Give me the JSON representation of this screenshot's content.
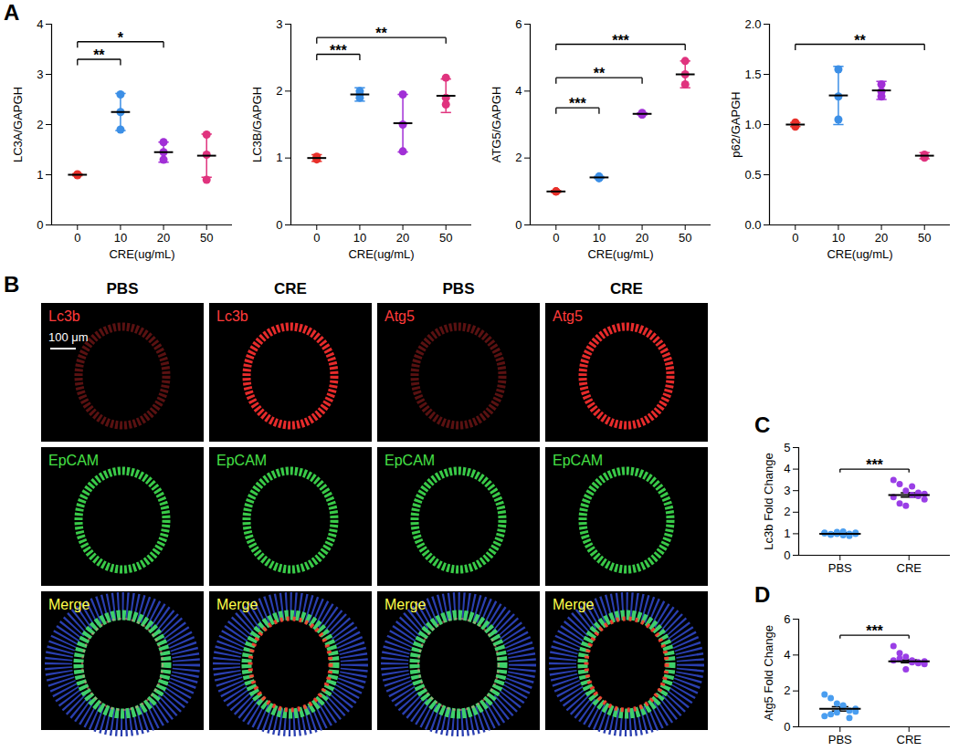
{
  "chart_data": [
    {
      "panel_label": "A",
      "type": "scatter",
      "categories": [
        "0",
        "10",
        "20",
        "50"
      ],
      "x_label": "CRE(ug/mL)",
      "y_label": "LC3A/GAPGH",
      "colors": [
        "#e8302a",
        "#3c8fe6",
        "#a12fd6",
        "#e0337e"
      ],
      "values": [
        [
          1.0,
          0.99,
          1.01
        ],
        [
          2.6,
          1.9,
          2.25
        ],
        [
          1.65,
          1.3,
          1.45
        ],
        [
          1.8,
          0.9,
          1.4
        ]
      ],
      "means": [
        1.0,
        2.25,
        1.45,
        1.38
      ],
      "errors": [
        0.02,
        0.37,
        0.2,
        0.43
      ],
      "ylim": [
        0,
        4
      ],
      "yticks": [
        0,
        1,
        2,
        3,
        4
      ],
      "significance": [
        {
          "between": [
            "0",
            "10"
          ],
          "y": 3.3,
          "label": "**"
        },
        {
          "between": [
            "0",
            "20"
          ],
          "y": 3.65,
          "label": "*"
        }
      ]
    },
    {
      "panel_label": null,
      "type": "scatter",
      "categories": [
        "0",
        "10",
        "20",
        "50"
      ],
      "x_label": "CRE(ug/mL)",
      "y_label": "LC3B/GAPGH",
      "colors": [
        "#e8302a",
        "#3c8fe6",
        "#a12fd6",
        "#e0337e"
      ],
      "values": [
        [
          0.98,
          1.02,
          1.0
        ],
        [
          2.0,
          1.9,
          1.95
        ],
        [
          1.95,
          1.1,
          1.5
        ],
        [
          2.2,
          1.8,
          1.9
        ]
      ],
      "means": [
        1.0,
        1.95,
        1.52,
        1.93
      ],
      "errors": [
        0.05,
        0.1,
        0.43,
        0.25
      ],
      "ylim": [
        0,
        3
      ],
      "yticks": [
        0,
        1,
        2,
        3
      ],
      "significance": [
        {
          "between": [
            "0",
            "10"
          ],
          "y": 2.55,
          "label": "***"
        },
        {
          "between": [
            "0",
            "50"
          ],
          "y": 2.8,
          "label": "**"
        }
      ]
    },
    {
      "panel_label": null,
      "type": "scatter",
      "categories": [
        "0",
        "10",
        "20",
        "50"
      ],
      "x_label": "CRE(ug/mL)",
      "y_label": "ATG5/GAPGH",
      "colors": [
        "#e8302a",
        "#3c8fe6",
        "#a12fd6",
        "#e0337e"
      ],
      "values": [
        [
          1.0,
          1.0,
          1.0
        ],
        [
          1.4,
          1.45,
          1.4
        ],
        [
          3.3,
          3.35,
          3.3
        ],
        [
          4.9,
          4.2,
          4.5
        ]
      ],
      "means": [
        1.0,
        1.42,
        3.32,
        4.5
      ],
      "errors": [
        0.03,
        0.03,
        0.03,
        0.4
      ],
      "ylim": [
        0,
        6
      ],
      "yticks": [
        0,
        2,
        4,
        6
      ],
      "significance": [
        {
          "between": [
            "0",
            "10"
          ],
          "y": 3.5,
          "label": "***"
        },
        {
          "between": [
            "0",
            "20"
          ],
          "y": 4.4,
          "label": "**"
        },
        {
          "between": [
            "0",
            "50"
          ],
          "y": 5.4,
          "label": "***"
        }
      ]
    },
    {
      "panel_label": null,
      "type": "scatter",
      "categories": [
        "0",
        "10",
        "20",
        "50"
      ],
      "x_label": "CRE(ug/mL)",
      "y_label": "p62/GAPGH",
      "colors": [
        "#e8302a",
        "#3c8fe6",
        "#a12fd6",
        "#e0337e"
      ],
      "values": [
        [
          1.0,
          0.98,
          1.02
        ],
        [
          1.55,
          1.05,
          1.28
        ],
        [
          1.4,
          1.28,
          1.33
        ],
        [
          0.7,
          0.67,
          0.68
        ]
      ],
      "means": [
        1.0,
        1.29,
        1.34,
        0.69
      ],
      "errors": [
        0.02,
        0.29,
        0.09,
        0.03
      ],
      "ylim": [
        0,
        2
      ],
      "yticks": [
        {
          "value": 0,
          "label": "0.0"
        },
        0.5,
        {
          "value": 1,
          "label": "1.0"
        },
        1.5,
        {
          "value": 2,
          "label": "2.0"
        }
      ],
      "significance": [
        {
          "between": [
            "0",
            "50"
          ],
          "y": 1.8,
          "label": "**"
        }
      ]
    },
    {
      "panel_label": "C",
      "type": "scatter",
      "categories": [
        "PBS",
        "CRE"
      ],
      "y_label": "Lc3b Fold Change",
      "colors": [
        "#4a9ef0",
        "#9a3ee6"
      ],
      "values": [
        [
          1.05,
          0.95,
          1.0,
          1.1,
          0.9,
          1.0,
          1.02,
          0.98,
          1.08,
          0.93,
          1.0,
          1.05
        ],
        [
          3.5,
          3.3,
          3.0,
          2.8,
          2.9,
          2.6,
          2.7,
          2.4,
          2.3,
          3.2,
          2.75,
          2.85
        ]
      ],
      "means": [
        1.0,
        2.8
      ],
      "errors": [
        0.05,
        0.1
      ],
      "ylim": [
        0,
        5
      ],
      "yticks": [
        0,
        1,
        2,
        3,
        4,
        5
      ],
      "significance": [
        {
          "between": [
            "PBS",
            "CRE"
          ],
          "y": 4.0,
          "label": "***"
        }
      ]
    },
    {
      "panel_label": "D",
      "type": "scatter",
      "categories": [
        "PBS",
        "CRE"
      ],
      "y_label": "Atg5 Fold Change",
      "colors": [
        "#4a9ef0",
        "#9a3ee6"
      ],
      "values": [
        [
          1.8,
          1.6,
          1.3,
          1.1,
          0.9,
          1.0,
          0.6,
          0.7,
          0.8,
          1.2,
          0.5,
          0.85
        ],
        [
          4.5,
          4.1,
          3.9,
          3.7,
          3.6,
          3.5,
          3.7,
          3.8,
          3.2,
          3.6,
          3.55,
          3.65
        ]
      ],
      "means": [
        1.0,
        3.65
      ],
      "errors": [
        0.12,
        0.08
      ],
      "ylim": [
        0,
        6
      ],
      "yticks": [
        0,
        2,
        4,
        6
      ],
      "significance": [
        {
          "between": [
            "PBS",
            "CRE"
          ],
          "y": 5.1,
          "label": "***"
        }
      ]
    }
  ],
  "image_panel": {
    "panel_label": "B",
    "columns": [
      {
        "header": "PBS",
        "labels": [
          "Lc3b",
          "EpCAM",
          "Merge"
        ]
      },
      {
        "header": "CRE",
        "labels": [
          "Lc3b",
          "EpCAM",
          "Merge"
        ]
      },
      {
        "header": "PBS",
        "labels": [
          "Atg5",
          "EpCAM",
          "Merge"
        ]
      },
      {
        "header": "CRE",
        "labels": [
          "Atg5",
          "EpCAM",
          "Merge"
        ]
      }
    ],
    "scale_bar": "100 μm"
  }
}
